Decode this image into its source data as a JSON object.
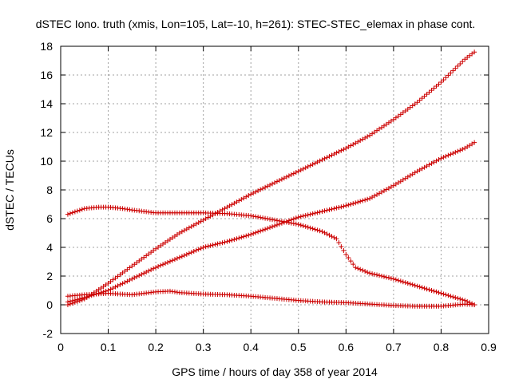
{
  "chart_data": {
    "type": "scatter",
    "title": "dSTEC Iono. truth (xmis, Lon=105, Lat=-10, h=261): STEC-STEC_elemax in phase cont.",
    "xlabel": "GPS time / hours of day 358 of year 2014",
    "ylabel": "dSTEC  / TECUs",
    "xlim": [
      0,
      0.9
    ],
    "ylim": [
      -2,
      18
    ],
    "x_ticks": [
      "0",
      "0.1",
      "0.2",
      "0.3",
      "0.4",
      "0.5",
      "0.6",
      "0.7",
      "0.8",
      "0.9"
    ],
    "y_ticks": [
      "-2",
      "0",
      "2",
      "4",
      "6",
      "8",
      "10",
      "12",
      "14",
      "16",
      "18"
    ],
    "grid": true,
    "marker": "+",
    "marker_color": "#cc0000",
    "series": [
      {
        "points": [
          [
            0.015,
            0.0
          ],
          [
            0.05,
            0.4
          ],
          [
            0.1,
            1.5
          ],
          [
            0.15,
            2.7
          ],
          [
            0.2,
            3.9
          ],
          [
            0.25,
            5.0
          ],
          [
            0.3,
            5.9
          ],
          [
            0.35,
            6.8
          ],
          [
            0.4,
            7.7
          ],
          [
            0.45,
            8.5
          ],
          [
            0.5,
            9.3
          ],
          [
            0.55,
            10.1
          ],
          [
            0.6,
            10.9
          ],
          [
            0.65,
            11.8
          ],
          [
            0.7,
            12.9
          ],
          [
            0.75,
            14.1
          ],
          [
            0.8,
            15.5
          ],
          [
            0.85,
            17.1
          ],
          [
            0.87,
            17.6
          ]
        ]
      },
      {
        "points": [
          [
            0.015,
            0.2
          ],
          [
            0.05,
            0.5
          ],
          [
            0.1,
            1.0
          ],
          [
            0.15,
            1.8
          ],
          [
            0.2,
            2.6
          ],
          [
            0.25,
            3.3
          ],
          [
            0.3,
            4.0
          ],
          [
            0.35,
            4.4
          ],
          [
            0.4,
            4.9
          ],
          [
            0.45,
            5.5
          ],
          [
            0.5,
            6.1
          ],
          [
            0.55,
            6.5
          ],
          [
            0.6,
            6.9
          ],
          [
            0.65,
            7.4
          ],
          [
            0.7,
            8.3
          ],
          [
            0.75,
            9.3
          ],
          [
            0.8,
            10.2
          ],
          [
            0.85,
            10.9
          ],
          [
            0.87,
            11.3
          ]
        ]
      },
      {
        "points": [
          [
            0.015,
            6.3
          ],
          [
            0.05,
            6.7
          ],
          [
            0.08,
            6.8
          ],
          [
            0.1,
            6.8
          ],
          [
            0.13,
            6.7
          ],
          [
            0.15,
            6.6
          ],
          [
            0.2,
            6.4
          ],
          [
            0.25,
            6.4
          ],
          [
            0.3,
            6.4
          ],
          [
            0.35,
            6.35
          ],
          [
            0.4,
            6.2
          ],
          [
            0.45,
            5.9
          ],
          [
            0.5,
            5.6
          ],
          [
            0.55,
            5.1
          ],
          [
            0.58,
            4.6
          ],
          [
            0.6,
            3.5
          ],
          [
            0.62,
            2.6
          ],
          [
            0.65,
            2.2
          ],
          [
            0.7,
            1.8
          ],
          [
            0.75,
            1.3
          ],
          [
            0.8,
            0.8
          ],
          [
            0.85,
            0.3
          ],
          [
            0.87,
            0.0
          ]
        ]
      },
      {
        "points": [
          [
            0.015,
            0.6
          ],
          [
            0.05,
            0.7
          ],
          [
            0.1,
            0.8
          ],
          [
            0.15,
            0.7
          ],
          [
            0.2,
            0.9
          ],
          [
            0.23,
            0.95
          ],
          [
            0.25,
            0.85
          ],
          [
            0.3,
            0.75
          ],
          [
            0.35,
            0.7
          ],
          [
            0.4,
            0.6
          ],
          [
            0.45,
            0.45
          ],
          [
            0.5,
            0.3
          ],
          [
            0.55,
            0.2
          ],
          [
            0.6,
            0.15
          ],
          [
            0.65,
            0.05
          ],
          [
            0.7,
            -0.05
          ],
          [
            0.75,
            -0.1
          ],
          [
            0.8,
            -0.1
          ],
          [
            0.85,
            0.05
          ],
          [
            0.87,
            0.0
          ]
        ]
      }
    ]
  }
}
